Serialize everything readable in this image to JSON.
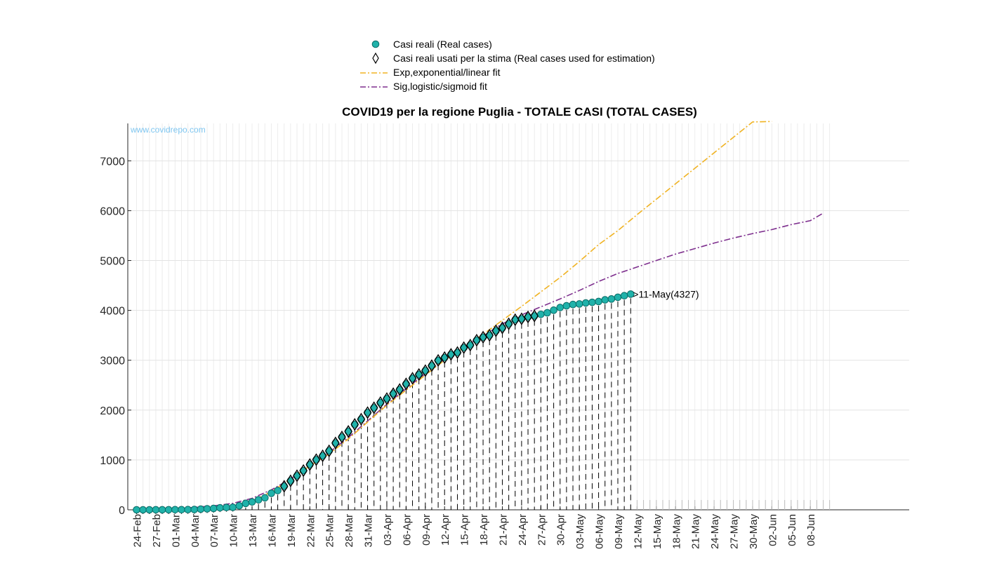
{
  "chart_data": {
    "type": "line",
    "title": "COVID19 per la regione Puglia - TOTALE CASI (TOTAL CASES)",
    "watermark": "www.covidrepo.com",
    "start_date": "2020-02-24",
    "ylim": [
      0,
      7750
    ],
    "yticks": [
      0,
      1000,
      2000,
      3000,
      4000,
      5000,
      6000,
      7000
    ],
    "grid": true,
    "xticks": [
      "24-Feb",
      "27-Feb",
      "01-Mar",
      "04-Mar",
      "07-Mar",
      "10-Mar",
      "13-Mar",
      "16-Mar",
      "19-Mar",
      "22-Mar",
      "25-Mar",
      "28-Mar",
      "31-Mar",
      "03-Apr",
      "06-Apr",
      "09-Apr",
      "12-Apr",
      "15-Apr",
      "18-Apr",
      "21-Apr",
      "24-Apr",
      "27-Apr",
      "30-Apr",
      "03-May",
      "06-May",
      "09-May",
      "12-May",
      "15-May",
      "18-May",
      "21-May",
      "24-May",
      "27-May",
      "30-May",
      "02-Jun",
      "05-Jun",
      "08-Jun"
    ],
    "legend": {
      "placement": "top",
      "entries": [
        {
          "label": "Casi reali (Real cases)",
          "marker": "circle",
          "color": "#20b2aa"
        },
        {
          "label": "Casi reali usati per la stima (Real cases used for estimation)",
          "marker": "diamond",
          "color": "#000000"
        },
        {
          "label": "Exp,exponential/linear fit",
          "line": "dash-dot",
          "color": "#f0b323"
        },
        {
          "label": "Sig,logistic/sigmoid fit",
          "line": "dash-dot",
          "color": "#7e2f8e"
        }
      ]
    },
    "annotation": {
      "text": ">11-May(4327)",
      "x": "11-May",
      "y": 4327
    },
    "real_cases": {
      "x": [
        "24-Feb",
        "25-Feb",
        "26-Feb",
        "27-Feb",
        "28-Feb",
        "29-Feb",
        "01-Mar",
        "02-Mar",
        "03-Mar",
        "04-Mar",
        "05-Mar",
        "06-Mar",
        "07-Mar",
        "08-Mar",
        "09-Mar",
        "10-Mar",
        "11-Mar",
        "12-Mar",
        "13-Mar",
        "14-Mar",
        "15-Mar",
        "16-Mar",
        "17-Mar",
        "18-Mar",
        "19-Mar",
        "20-Mar",
        "21-Mar",
        "22-Mar",
        "23-Mar",
        "24-Mar",
        "25-Mar",
        "26-Mar",
        "27-Mar",
        "28-Mar",
        "29-Mar",
        "30-Mar",
        "31-Mar",
        "01-Apr",
        "02-Apr",
        "03-Apr",
        "04-Apr",
        "05-Apr",
        "06-Apr",
        "07-Apr",
        "08-Apr",
        "09-Apr",
        "10-Apr",
        "11-Apr",
        "12-Apr",
        "13-Apr",
        "14-Apr",
        "15-Apr",
        "16-Apr",
        "17-Apr",
        "18-Apr",
        "19-Apr",
        "20-Apr",
        "21-Apr",
        "22-Apr",
        "23-Apr",
        "24-Apr",
        "25-Apr",
        "26-Apr",
        "27-Apr",
        "28-Apr",
        "29-Apr",
        "30-Apr",
        "01-May",
        "02-May",
        "03-May",
        "04-May",
        "05-May",
        "06-May",
        "07-May",
        "08-May",
        "09-May",
        "10-May",
        "11-May"
      ],
      "y": [
        0,
        0,
        0,
        1,
        1,
        1,
        3,
        3,
        4,
        6,
        13,
        20,
        27,
        40,
        47,
        50,
        81,
        129,
        158,
        200,
        240,
        331,
        386,
        472,
        580,
        683,
        786,
        907,
        1005,
        1082,
        1182,
        1340,
        1459,
        1572,
        1712,
        1817,
        1949,
        2046,
        2149,
        2230,
        2328,
        2412,
        2525,
        2638,
        2714,
        2791,
        2890,
        2996,
        3052,
        3117,
        3154,
        3252,
        3303,
        3401,
        3462,
        3500,
        3590,
        3648,
        3730,
        3812,
        3830,
        3868,
        3889,
        3920,
        3951,
        4004,
        4057,
        4092,
        4118,
        4129,
        4149,
        4161,
        4178,
        4211,
        4229,
        4263,
        4294,
        4327
      ]
    },
    "estimation_cases": {
      "x_start": "18-Mar",
      "x_end": "26-Apr",
      "note": "markers on real data points between these dates"
    },
    "exp_fit": {
      "x": [
        "10-Mar",
        "13-Mar",
        "16-Mar",
        "19-Mar",
        "22-Mar",
        "25-Mar",
        "28-Mar",
        "31-Mar",
        "03-Apr",
        "06-Apr",
        "09-Apr",
        "12-Apr",
        "15-Apr",
        "18-Apr",
        "21-Apr",
        "24-Apr",
        "27-Apr",
        "30-Apr",
        "03-May",
        "06-May",
        "09-May",
        "12-May",
        "15-May",
        "18-May",
        "21-May",
        "24-May",
        "27-May",
        "30-May",
        "02-Jun"
      ],
      "y": [
        60,
        180,
        360,
        620,
        880,
        1120,
        1420,
        1760,
        2100,
        2400,
        2700,
        3000,
        3250,
        3520,
        3800,
        4080,
        4370,
        4660,
        4980,
        5320,
        5600,
        5920,
        6230,
        6540,
        6850,
        7160,
        7470,
        7780,
        7790
      ]
    },
    "sig_fit": {
      "x": [
        "03-Mar",
        "07-Mar",
        "10-Mar",
        "13-Mar",
        "16-Mar",
        "19-Mar",
        "22-Mar",
        "25-Mar",
        "28-Mar",
        "31-Mar",
        "03-Apr",
        "06-Apr",
        "09-Apr",
        "12-Apr",
        "15-Apr",
        "18-Apr",
        "21-Apr",
        "24-Apr",
        "27-Apr",
        "30-Apr",
        "03-May",
        "06-May",
        "09-May",
        "12-May",
        "15-May",
        "18-May",
        "21-May",
        "24-May",
        "27-May",
        "30-May",
        "02-Jun",
        "05-Jun",
        "08-Jun",
        "10-Jun"
      ],
      "y": [
        40,
        80,
        130,
        230,
        400,
        620,
        880,
        1150,
        1450,
        1780,
        2120,
        2430,
        2730,
        3010,
        3270,
        3490,
        3730,
        3910,
        4070,
        4230,
        4400,
        4580,
        4740,
        4870,
        5000,
        5130,
        5240,
        5350,
        5450,
        5540,
        5620,
        5720,
        5800,
        5950
      ]
    }
  }
}
